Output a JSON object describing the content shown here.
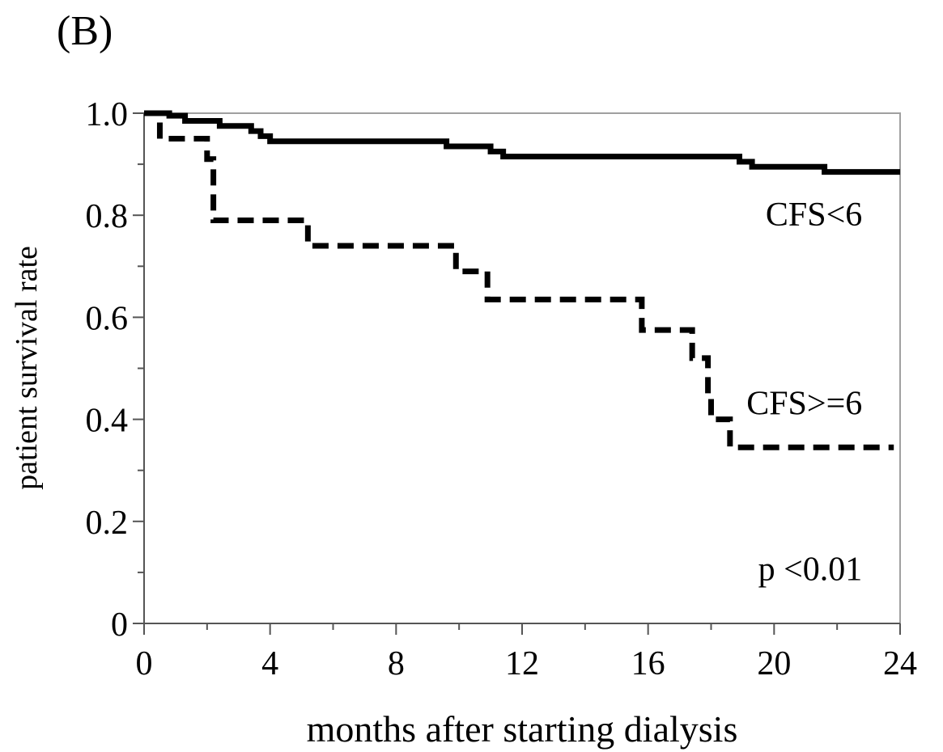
{
  "panel_label": "(B)",
  "chart_data": {
    "type": "line",
    "subtype": "kaplan-meier step",
    "xlabel": "months after starting dialysis",
    "ylabel": "patient survival rate",
    "xlim": [
      0,
      24
    ],
    "ylim": [
      0,
      1.0
    ],
    "x_ticks": [
      0,
      4,
      8,
      12,
      16,
      20,
      24
    ],
    "x_tick_labels": [
      "0",
      "4",
      "8",
      "12",
      "16",
      "20",
      "24"
    ],
    "x_minor_step": 2,
    "y_ticks": [
      0,
      0.2,
      0.4,
      0.6,
      0.8,
      1.0
    ],
    "y_tick_labels": [
      "0",
      "0.2",
      "0.4",
      "0.6",
      "0.8",
      "1.0"
    ],
    "y_minor_step": 0.1,
    "grid": false,
    "series": [
      {
        "name": "CFS<6",
        "line_style": "solid",
        "color": "#000000",
        "points": [
          [
            0,
            1.0
          ],
          [
            0.8,
            0.995
          ],
          [
            1.3,
            0.985
          ],
          [
            2.4,
            0.975
          ],
          [
            3.4,
            0.965
          ],
          [
            3.7,
            0.955
          ],
          [
            4.0,
            0.945
          ],
          [
            9.6,
            0.935
          ],
          [
            11.0,
            0.925
          ],
          [
            11.4,
            0.915
          ],
          [
            18.9,
            0.905
          ],
          [
            19.3,
            0.895
          ],
          [
            21.6,
            0.885
          ],
          [
            24.0,
            0.885
          ]
        ]
      },
      {
        "name": "CFS>=6",
        "line_style": "dashed",
        "color": "#000000",
        "points": [
          [
            0,
            1.0
          ],
          [
            0.5,
            0.95
          ],
          [
            2.0,
            0.91
          ],
          [
            2.2,
            0.79
          ],
          [
            5.2,
            0.74
          ],
          [
            9.9,
            0.69
          ],
          [
            10.9,
            0.635
          ],
          [
            15.8,
            0.575
          ],
          [
            17.4,
            0.52
          ],
          [
            17.9,
            0.45
          ],
          [
            18.0,
            0.4
          ],
          [
            18.6,
            0.345
          ],
          [
            23.8,
            0.345
          ]
        ]
      }
    ],
    "annotations": [
      {
        "text": "CFS<6",
        "x": 22.8,
        "y": 0.78
      },
      {
        "text": "CFS>=6",
        "x": 22.8,
        "y": 0.41
      },
      {
        "text": "p <0.01",
        "x": 22.8,
        "y": 0.085
      }
    ]
  }
}
